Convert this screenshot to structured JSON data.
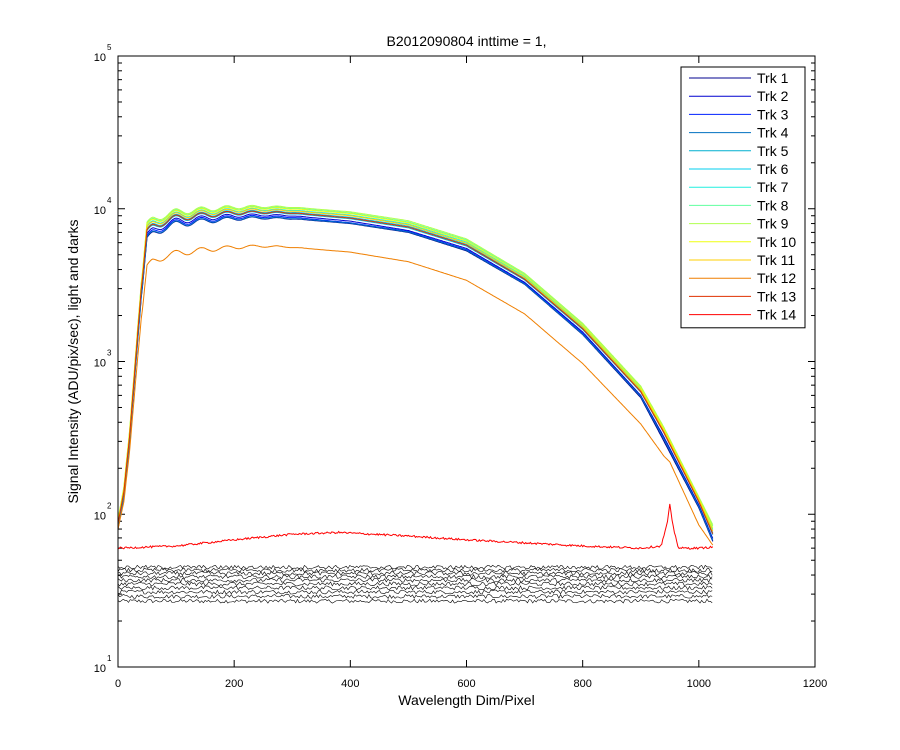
{
  "chart_data": {
    "type": "line",
    "title": "B2012090804 inttime = 1,",
    "xlabel": "Wavelength Dim/Pixel",
    "ylabel": "Signal Intensity (ADU/pix/sec), light and darks",
    "xlim": [
      0,
      1200
    ],
    "ylim": [
      10,
      100000
    ],
    "yscale": "log",
    "xticks": [
      0,
      200,
      400,
      600,
      800,
      1000,
      1200
    ],
    "yticks": [
      {
        "value": 10,
        "base": "10",
        "exp": "1"
      },
      {
        "value": 100,
        "base": "10",
        "exp": "2"
      },
      {
        "value": 1000,
        "base": "10",
        "exp": "3"
      },
      {
        "value": 10000,
        "base": "10",
        "exp": "4"
      },
      {
        "value": 100000,
        "base": "10",
        "exp": "5"
      }
    ],
    "legend_position": "top-right",
    "series": [
      {
        "name": "Trk 1",
        "color": "#00008f",
        "x": [
          0,
          10,
          20,
          30,
          40,
          50,
          60,
          80,
          100,
          150,
          200,
          250,
          300,
          400,
          500,
          600,
          700,
          800,
          900,
          940,
          1000,
          1025
        ],
        "values": [
          80,
          130,
          300,
          900,
          2600,
          6200,
          6800,
          7500,
          7900,
          8300,
          8600,
          8700,
          8600,
          8000,
          7000,
          5300,
          3200,
          1500,
          580,
          300,
          110,
          65
        ]
      },
      {
        "name": "Trk 2",
        "color": "#0000cf",
        "x": [
          0,
          10,
          20,
          30,
          40,
          50,
          60,
          80,
          100,
          150,
          200,
          250,
          300,
          400,
          500,
          600,
          700,
          800,
          900,
          940,
          1000,
          1025
        ],
        "values": [
          85,
          135,
          310,
          950,
          2800,
          6600,
          7200,
          7900,
          8300,
          8700,
          9000,
          9100,
          9000,
          8300,
          7200,
          5500,
          3300,
          1560,
          600,
          320,
          115,
          68
        ]
      },
      {
        "name": "Trk 3",
        "color": "#0020ff",
        "x": [
          0,
          10,
          20,
          30,
          40,
          50,
          60,
          80,
          100,
          150,
          200,
          250,
          300,
          400,
          500,
          600,
          700,
          800,
          900,
          940,
          1000,
          1025
        ],
        "values": [
          83,
          132,
          305,
          920,
          2700,
          6400,
          7000,
          7700,
          8100,
          8500,
          8800,
          8900,
          8800,
          8100,
          7100,
          5400,
          3250,
          1530,
          590,
          310,
          112,
          66
        ]
      },
      {
        "name": "Trk 4",
        "color": "#0070c0",
        "x": [
          0,
          10,
          20,
          30,
          40,
          50,
          60,
          80,
          100,
          150,
          200,
          250,
          300,
          400,
          500,
          600,
          700,
          800,
          900,
          940,
          1000,
          1025
        ],
        "values": [
          82,
          130,
          300,
          900,
          2650,
          6300,
          6850,
          7550,
          7950,
          8350,
          8650,
          8750,
          8650,
          8050,
          7050,
          5350,
          3220,
          1510,
          590,
          310,
          112,
          66
        ]
      },
      {
        "name": "Trk 5",
        "color": "#00afcf",
        "x": [
          0,
          10,
          20,
          30,
          40,
          50,
          60,
          80,
          100,
          150,
          200,
          250,
          300,
          400,
          500,
          600,
          700,
          800,
          900,
          940,
          1000,
          1025
        ],
        "values": [
          86,
          138,
          320,
          980,
          2900,
          6900,
          7500,
          8200,
          8600,
          9000,
          9300,
          9400,
          9300,
          8600,
          7500,
          5700,
          3420,
          1620,
          630,
          340,
          120,
          72
        ]
      },
      {
        "name": "Trk 6",
        "color": "#00cfef",
        "x": [
          0,
          10,
          20,
          30,
          40,
          50,
          60,
          80,
          100,
          150,
          200,
          250,
          300,
          400,
          500,
          600,
          700,
          800,
          900,
          940,
          1000,
          1025
        ],
        "values": [
          88,
          140,
          330,
          1000,
          3000,
          7100,
          7700,
          8400,
          8800,
          9200,
          9500,
          9600,
          9500,
          8800,
          7700,
          5850,
          3500,
          1660,
          640,
          345,
          122,
          74
        ]
      },
      {
        "name": "Trk 7",
        "color": "#20efdf",
        "x": [
          0,
          10,
          20,
          30,
          40,
          50,
          60,
          80,
          100,
          150,
          200,
          250,
          300,
          400,
          500,
          600,
          700,
          800,
          900,
          940,
          1000,
          1025
        ],
        "values": [
          90,
          145,
          340,
          1030,
          3100,
          7400,
          8000,
          8700,
          9100,
          9500,
          9800,
          9900,
          9800,
          9100,
          7950,
          6050,
          3600,
          1700,
          660,
          355,
          125,
          78
        ]
      },
      {
        "name": "Trk 8",
        "color": "#60ff9f",
        "x": [
          0,
          10,
          20,
          30,
          40,
          50,
          60,
          80,
          100,
          150,
          200,
          250,
          300,
          400,
          500,
          600,
          700,
          800,
          900,
          940,
          1000,
          1025
        ],
        "values": [
          92,
          148,
          350,
          1060,
          3200,
          7700,
          8300,
          9000,
          9400,
          9800,
          10100,
          10200,
          10100,
          9400,
          8200,
          6250,
          3720,
          1750,
          680,
          365,
          128,
          82
        ]
      },
      {
        "name": "Trk 9",
        "color": "#b0ff4f",
        "x": [
          0,
          10,
          20,
          30,
          40,
          50,
          60,
          80,
          100,
          150,
          200,
          250,
          300,
          400,
          500,
          600,
          700,
          800,
          900,
          940,
          1000,
          1025
        ],
        "values": [
          93,
          150,
          355,
          1080,
          3250,
          7850,
          8450,
          9150,
          9550,
          9950,
          10250,
          10350,
          10250,
          9550,
          8350,
          6350,
          3780,
          1780,
          690,
          370,
          130,
          84
        ]
      },
      {
        "name": "Trk 10",
        "color": "#efff10",
        "x": [
          0,
          10,
          20,
          30,
          40,
          50,
          60,
          80,
          100,
          150,
          200,
          250,
          300,
          400,
          500,
          600,
          700,
          800,
          900,
          940,
          1000,
          1025
        ],
        "values": [
          91,
          146,
          345,
          1050,
          3150,
          7600,
          8200,
          8900,
          9300,
          9700,
          10000,
          10100,
          10000,
          9300,
          8100,
          6150,
          3660,
          1730,
          670,
          360,
          126,
          80
        ]
      },
      {
        "name": "Trk 11",
        "color": "#ffcf00",
        "x": [
          0,
          10,
          20,
          30,
          40,
          50,
          60,
          80,
          100,
          150,
          200,
          250,
          300,
          400,
          500,
          600,
          700,
          800,
          900,
          940,
          1000,
          1025
        ],
        "values": [
          89,
          143,
          335,
          1010,
          3050,
          7300,
          7900,
          8600,
          9000,
          9400,
          9700,
          9800,
          9700,
          9000,
          7850,
          5950,
          3540,
          1680,
          650,
          350,
          124,
          76
        ]
      },
      {
        "name": "Trk 12",
        "color": "#ef7f00",
        "x": [
          0,
          10,
          20,
          30,
          40,
          50,
          60,
          80,
          100,
          150,
          200,
          250,
          300,
          400,
          500,
          600,
          700,
          800,
          900,
          940,
          950,
          1000,
          1025
        ],
        "values": [
          80,
          120,
          260,
          720,
          1900,
          4100,
          4500,
          4900,
          5100,
          5400,
          5600,
          5700,
          5600,
          5200,
          4500,
          3400,
          2050,
          970,
          390,
          240,
          220,
          85,
          62
        ]
      },
      {
        "name": "Trk 13",
        "color": "#df3000",
        "x": [
          0,
          10,
          20,
          30,
          40,
          50,
          60,
          80,
          100,
          150,
          200,
          250,
          300,
          400,
          500,
          600,
          700,
          800,
          900,
          940,
          1000,
          1025
        ],
        "values": [
          87,
          139,
          325,
          990,
          2950,
          7000,
          7600,
          8300,
          8700,
          9100,
          9400,
          9500,
          9400,
          8700,
          7600,
          5780,
          3460,
          1640,
          635,
          342,
          121,
          73
        ]
      },
      {
        "name": "Trk 14",
        "color": "#ff0000",
        "x": [
          0,
          100,
          200,
          300,
          380,
          500,
          600,
          700,
          800,
          900,
          935,
          945,
          950,
          955,
          965,
          1000,
          1025
        ],
        "values": [
          60,
          62,
          68,
          74,
          76,
          72,
          68,
          65,
          62,
          60,
          62,
          85,
          115,
          85,
          60,
          60,
          61
        ]
      }
    ],
    "darks": {
      "color": "#000000",
      "x_range": [
        0,
        1025
      ],
      "levels": [
        27,
        29,
        31,
        33,
        35,
        37,
        39,
        41,
        43,
        45
      ]
    }
  }
}
